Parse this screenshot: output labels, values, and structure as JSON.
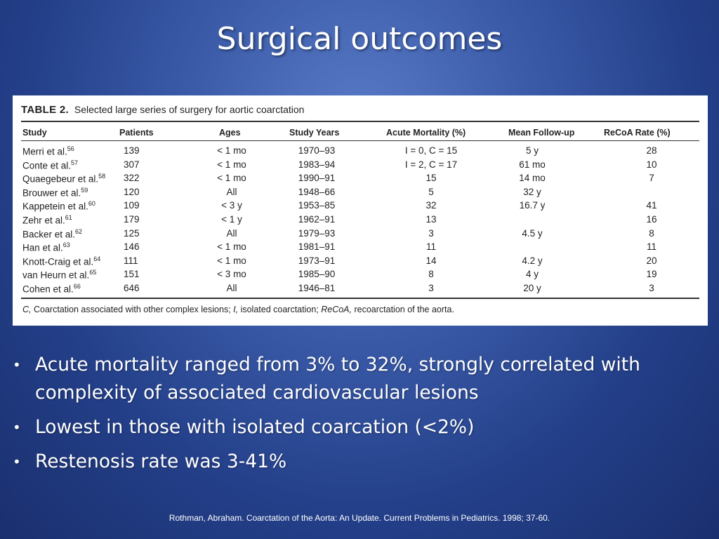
{
  "slide": {
    "title": "Surgical outcomes",
    "table": {
      "caption_label": "TABLE 2.",
      "caption_text": "Selected large series of surgery for aortic coarctation",
      "headers": [
        "Study",
        "Patients",
        "Ages",
        "Study Years",
        "Acute Mortality (%)",
        "Mean Follow-up",
        "ReCoA Rate (%)"
      ],
      "rows": [
        {
          "study": "Merri et al.",
          "ref": "56",
          "patients": "139",
          "ages": "< 1 mo",
          "years": "1970–93",
          "mortality": "I = 0, C = 15",
          "followup": "5 y",
          "recoa": "28"
        },
        {
          "study": "Conte et al.",
          "ref": "57",
          "patients": "307",
          "ages": "< 1 mo",
          "years": "1983–94",
          "mortality": "I = 2, C = 17",
          "followup": "61 mo",
          "recoa": "10"
        },
        {
          "study": "Quaegebeur et al.",
          "ref": "58",
          "patients": "322",
          "ages": "< 1 mo",
          "years": "1990–91",
          "mortality": "15",
          "followup": "14 mo",
          "recoa": "7"
        },
        {
          "study": "Brouwer et al.",
          "ref": "59",
          "patients": "120",
          "ages": "All",
          "years": "1948–66",
          "mortality": "5",
          "followup": "32 y",
          "recoa": ""
        },
        {
          "study": "Kappetein et al.",
          "ref": "60",
          "patients": "109",
          "ages": "< 3 y",
          "years": "1953–85",
          "mortality": "32",
          "followup": "16.7 y",
          "recoa": "41"
        },
        {
          "study": "Zehr et al.",
          "ref": "61",
          "patients": "179",
          "ages": "< 1 y",
          "years": "1962–91",
          "mortality": "13",
          "followup": "",
          "recoa": "16"
        },
        {
          "study": "Backer et al.",
          "ref": "62",
          "patients": "125",
          "ages": "All",
          "years": "1979–93",
          "mortality": "3",
          "followup": "4.5 y",
          "recoa": "8"
        },
        {
          "study": "Han et al.",
          "ref": "63",
          "patients": "146",
          "ages": "< 1 mo",
          "years": "1981–91",
          "mortality": "11",
          "followup": "",
          "recoa": "11"
        },
        {
          "study": "Knott-Craig et al.",
          "ref": "64",
          "patients": "111",
          "ages": "< 1 mo",
          "years": "1973–91",
          "mortality": "14",
          "followup": "4.2 y",
          "recoa": "20"
        },
        {
          "study": "van Heurn et al.",
          "ref": "65",
          "patients": "151",
          "ages": "< 3 mo",
          "years": "1985–90",
          "mortality": "8",
          "followup": "4 y",
          "recoa": "19"
        },
        {
          "study": "Cohen et al.",
          "ref": "66",
          "patients": "646",
          "ages": "All",
          "years": "1946–81",
          "mortality": "3",
          "followup": "20 y",
          "recoa": "3"
        }
      ],
      "footnote": {
        "c_abbr": "C,",
        "c_text": " Coarctation associated with other complex lesions; ",
        "i_abbr": "I,",
        "i_text": " isolated coarctation; ",
        "recoa_abbr": "ReCoA,",
        "recoa_text": " recoarctation of the aorta."
      }
    },
    "bullets": [
      "Acute mortality ranged from 3% to 32%, strongly correlated with complexity of associated cardiovascular lesions",
      "Lowest in those with isolated coarcation (<2%)",
      "Restenosis rate was 3-41%"
    ],
    "bullet_marker": "•",
    "citation": "Rothman, Abraham.  Coarctation of  the Aorta: An Update.  Current Problems in Pediatrics.  1998; 37-60."
  }
}
